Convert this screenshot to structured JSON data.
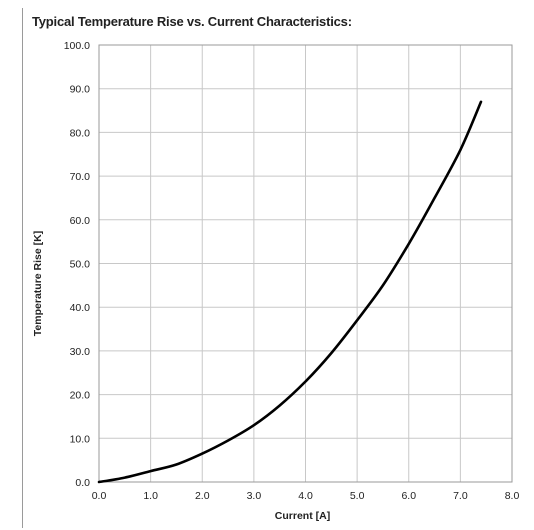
{
  "chart_data": {
    "type": "line",
    "title": "Typical Temperature Rise vs. Current Characteristics:",
    "xlabel": "Current [A]",
    "ylabel": "Temperature Rise [K]",
    "xlim": [
      0,
      8
    ],
    "ylim": [
      0,
      100
    ],
    "x_ticks": [
      0,
      1,
      2,
      3,
      4,
      5,
      6,
      7,
      8
    ],
    "x_tick_labels": [
      "0.0",
      "1.0",
      "2.0",
      "3.0",
      "4.0",
      "5.0",
      "6.0",
      "7.0",
      "8.0"
    ],
    "y_ticks": [
      0,
      10,
      20,
      30,
      40,
      50,
      60,
      70,
      80,
      90,
      100
    ],
    "y_tick_labels": [
      "0.0",
      "10.0",
      "20.0",
      "30.0",
      "40.0",
      "50.0",
      "60.0",
      "70.0",
      "80.0",
      "90.0",
      "100.0"
    ],
    "grid": true,
    "series": [
      {
        "x": [
          0,
          0.5,
          1.0,
          1.5,
          2.0,
          2.5,
          3.0,
          3.5,
          4.0,
          4.5,
          5.0,
          5.5,
          6.0,
          6.5,
          7.0,
          7.4
        ],
        "y": [
          0,
          1.0,
          2.5,
          4.0,
          6.5,
          9.5,
          13.0,
          17.5,
          23.0,
          29.5,
          37.0,
          45.0,
          54.5,
          65.0,
          76.0,
          87.0
        ]
      }
    ]
  },
  "colors": {
    "line": "#000000",
    "grid": "#c8c8c8",
    "frame": "#9a9a9a",
    "text": "#222222"
  }
}
